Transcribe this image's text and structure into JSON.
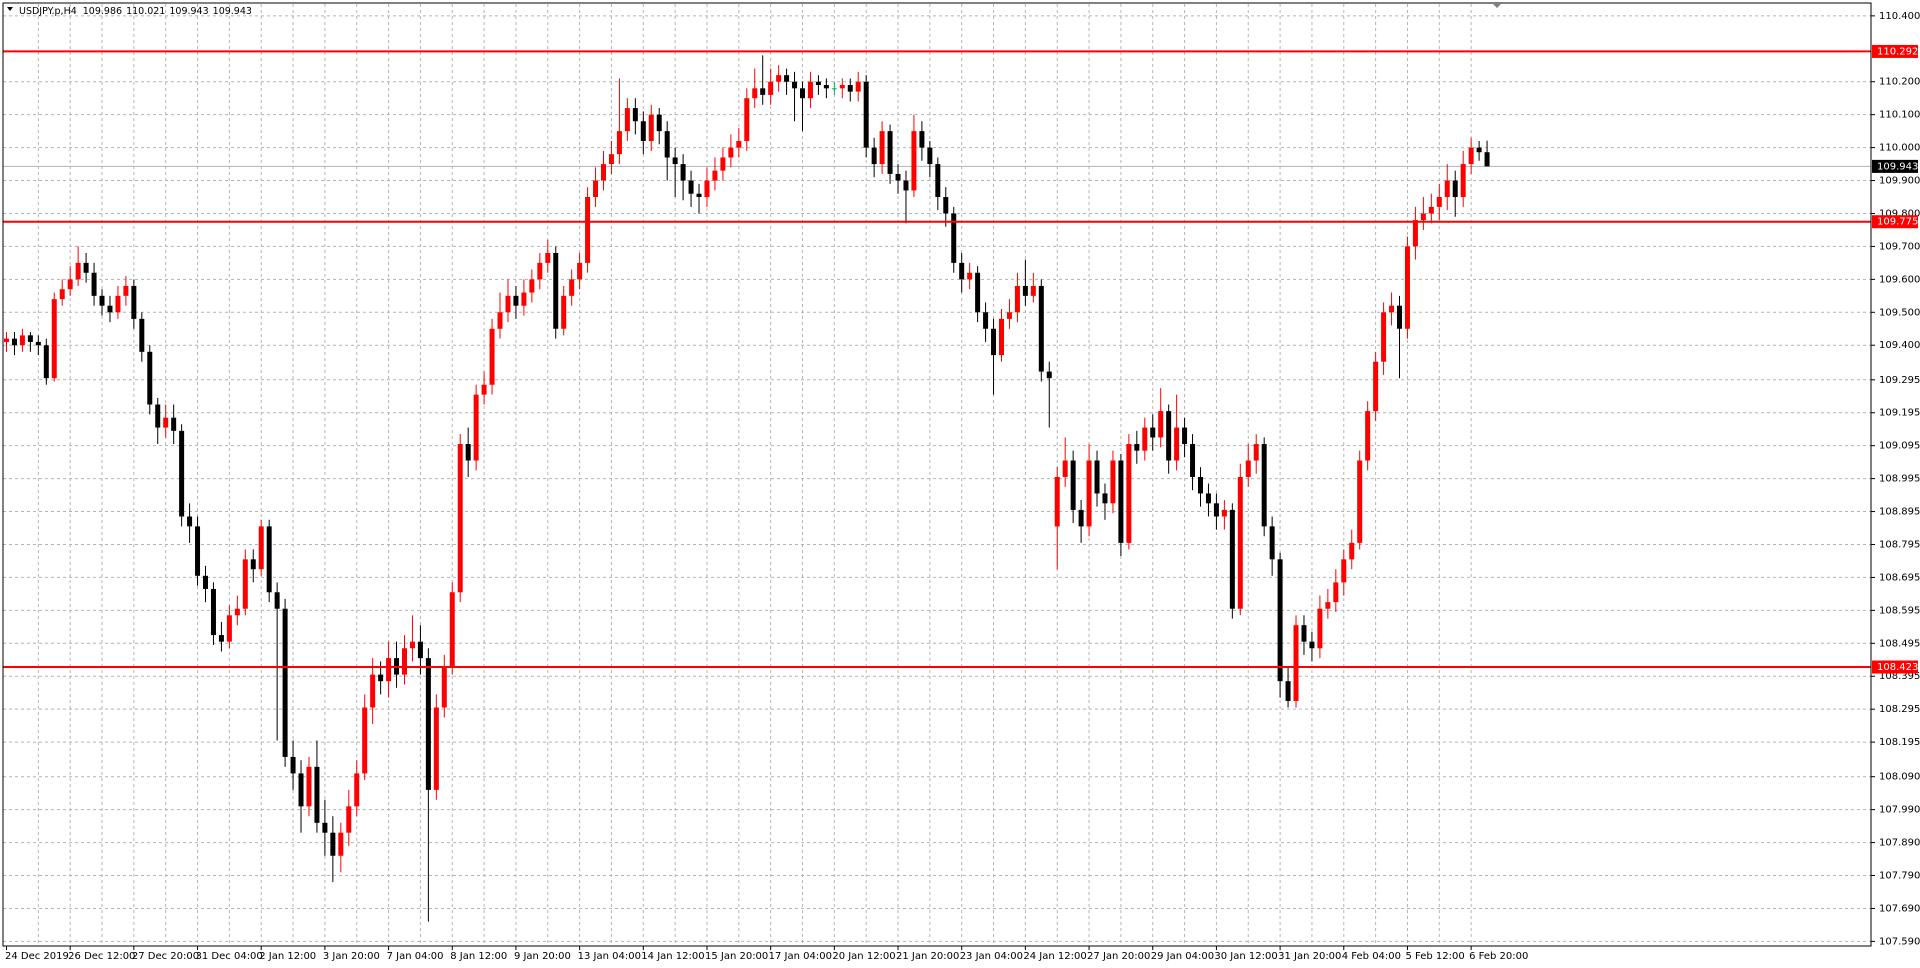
{
  "chart_data": {
    "type": "candlestick",
    "title": "USDJPY.p,H4",
    "categories": [
      "24 Dec 2019",
      null,
      null,
      null,
      null,
      null,
      null,
      null,
      "26 Dec 12:00",
      null,
      null,
      null,
      null,
      null,
      null,
      null,
      "27 Dec 20:00",
      null,
      null,
      null,
      null,
      null,
      null,
      null,
      "31 Dec 04:00",
      null,
      null,
      null,
      null,
      null,
      null,
      null,
      "2 Jan 12:00",
      null,
      null,
      null,
      null,
      null,
      null,
      null,
      "3 Jan 20:00",
      null,
      null,
      null,
      null,
      null,
      null,
      null,
      "7 Jan 04:00",
      null,
      null,
      null,
      null,
      null,
      null,
      null,
      "8 Jan 12:00",
      null,
      null,
      null,
      null,
      null,
      null,
      null,
      "9 Jan 20:00",
      null,
      null,
      null,
      null,
      null,
      null,
      null,
      "13 Jan 04:00",
      null,
      null,
      null,
      null,
      null,
      null,
      null,
      "14 Jan 12:00",
      null,
      null,
      null,
      null,
      null,
      null,
      null,
      "15 Jan 20:00",
      null,
      null,
      null,
      null,
      null,
      null,
      null,
      "17 Jan 04:00",
      null,
      null,
      null,
      null,
      null,
      null,
      null,
      "20 Jan 12:00",
      null,
      null,
      null,
      null,
      null,
      null,
      null,
      "21 Jan 20:00",
      null,
      null,
      null,
      null,
      null,
      null,
      null,
      "23 Jan 04:00",
      null,
      null,
      null,
      null,
      null,
      null,
      null,
      "24 Jan 12:00",
      null,
      null,
      null,
      null,
      null,
      null,
      null,
      "27 Jan 20:00",
      null,
      null,
      null,
      null,
      null,
      null,
      null,
      "29 Jan 04:00",
      null,
      null,
      null,
      null,
      null,
      null,
      null,
      "30 Jan 12:00",
      null,
      null,
      null,
      null,
      null,
      null,
      null,
      "31 Jan 20:00",
      null,
      null,
      null,
      null,
      null,
      null,
      null,
      "4 Feb 04:00",
      null,
      null,
      null,
      null,
      null,
      null,
      null,
      "5 Feb 12:00",
      null,
      null,
      null,
      null,
      null,
      null,
      null,
      "6 Feb 20:00",
      null,
      null
    ],
    "open": [
      109.41,
      109.42,
      109.4,
      109.43,
      109.41,
      109.4,
      109.3,
      109.54,
      109.57,
      109.6,
      109.65,
      109.62,
      109.55,
      109.52,
      109.5,
      109.55,
      109.58,
      109.48,
      109.38,
      109.22,
      109.15,
      109.18,
      109.14,
      108.88,
      108.85,
      108.7,
      108.66,
      108.52,
      108.5,
      108.58,
      108.6,
      108.75,
      108.72,
      108.85,
      108.65,
      108.6,
      108.15,
      108.1,
      108.0,
      108.12,
      107.95,
      107.92,
      107.85,
      107.92,
      108.0,
      108.1,
      108.3,
      108.4,
      108.38,
      108.45,
      108.4,
      108.48,
      108.5,
      108.45,
      108.05,
      108.3,
      108.42,
      108.65,
      109.1,
      109.05,
      109.25,
      109.28,
      109.45,
      109.5,
      109.55,
      109.52,
      109.56,
      109.6,
      109.65,
      109.68,
      109.45,
      109.55,
      109.6,
      109.65,
      109.85,
      109.9,
      109.95,
      109.98,
      110.05,
      110.12,
      110.08,
      110.02,
      110.1,
      110.05,
      109.97,
      109.95,
      109.9,
      109.86,
      109.85,
      109.9,
      109.93,
      109.97,
      110.0,
      110.02,
      110.15,
      110.18,
      110.16,
      110.2,
      110.22,
      110.2,
      110.18,
      110.15,
      110.2,
      110.19,
      110.18,
      110.18,
      110.19,
      110.17,
      110.2,
      110.0,
      109.95,
      110.05,
      109.92,
      109.9,
      109.87,
      110.05,
      110.0,
      109.95,
      109.85,
      109.8,
      109.65,
      109.6,
      109.62,
      109.5,
      109.45,
      109.37,
      109.48,
      109.5,
      109.58,
      109.55,
      109.58,
      109.32,
      108.85,
      109.0,
      109.05,
      108.9,
      108.85,
      109.05,
      108.95,
      108.92,
      109.05,
      108.8,
      109.1,
      109.08,
      109.15,
      109.12,
      109.2,
      109.05,
      109.15,
      109.1,
      109.0,
      108.95,
      108.92,
      108.88,
      108.9,
      108.6,
      109.0,
      109.05,
      109.1,
      108.85,
      108.75,
      108.38,
      108.32,
      108.55,
      108.5,
      108.48,
      108.6,
      108.62,
      108.68,
      108.75,
      108.8,
      109.05,
      109.2,
      109.35,
      109.5,
      109.52,
      109.45,
      109.7,
      109.78,
      109.8,
      109.82,
      109.85,
      109.9,
      109.85,
      109.95,
      110.0,
      109.986
    ],
    "high": [
      109.44,
      109.44,
      109.45,
      109.44,
      109.43,
      109.42,
      109.56,
      109.6,
      109.64,
      109.7,
      109.68,
      109.65,
      109.57,
      109.55,
      109.58,
      109.61,
      109.6,
      109.5,
      109.4,
      109.24,
      109.22,
      109.22,
      109.16,
      108.92,
      108.88,
      108.73,
      108.68,
      108.56,
      108.61,
      108.64,
      108.78,
      108.78,
      108.87,
      108.87,
      108.68,
      108.63,
      108.2,
      108.14,
      108.15,
      108.2,
      108.02,
      107.97,
      107.95,
      108.05,
      108.14,
      108.34,
      108.45,
      108.44,
      108.5,
      108.5,
      108.52,
      108.58,
      108.55,
      108.48,
      108.34,
      108.46,
      108.68,
      109.13,
      109.15,
      109.28,
      109.32,
      109.48,
      109.56,
      109.6,
      109.58,
      109.6,
      109.63,
      109.68,
      109.72,
      109.7,
      109.58,
      109.63,
      109.68,
      109.88,
      109.94,
      109.99,
      110.02,
      110.21,
      110.15,
      110.15,
      110.11,
      110.13,
      110.12,
      110.08,
      110.0,
      109.98,
      109.93,
      109.89,
      109.94,
      109.97,
      110.0,
      110.04,
      110.06,
      110.18,
      110.24,
      110.28,
      110.24,
      110.25,
      110.24,
      110.23,
      110.2,
      110.23,
      110.22,
      110.21,
      110.2,
      110.21,
      110.21,
      110.23,
      110.22,
      110.03,
      110.08,
      110.07,
      109.95,
      109.93,
      110.1,
      110.08,
      110.02,
      109.97,
      109.88,
      109.82,
      109.68,
      109.65,
      109.64,
      109.53,
      109.48,
      109.51,
      109.54,
      109.62,
      109.66,
      109.62,
      109.6,
      109.35,
      109.03,
      109.12,
      109.08,
      108.93,
      109.1,
      109.08,
      108.98,
      109.08,
      109.07,
      109.13,
      109.14,
      109.18,
      109.19,
      109.27,
      109.22,
      109.25,
      109.18,
      109.13,
      109.03,
      108.98,
      108.95,
      108.93,
      108.92,
      109.04,
      109.1,
      109.13,
      109.12,
      108.88,
      108.77,
      108.42,
      108.58,
      108.58,
      108.53,
      108.64,
      108.66,
      108.72,
      108.78,
      108.84,
      109.08,
      109.23,
      109.38,
      109.53,
      109.56,
      109.55,
      109.73,
      109.82,
      109.85,
      109.86,
      109.89,
      109.95,
      109.93,
      109.99,
      110.03,
      110.02,
      110.021
    ],
    "low": [
      109.38,
      109.37,
      109.38,
      109.38,
      109.37,
      109.28,
      109.29,
      109.52,
      109.55,
      109.58,
      109.59,
      109.52,
      109.49,
      109.47,
      109.48,
      109.52,
      109.45,
      109.35,
      109.19,
      109.1,
      109.12,
      109.1,
      108.85,
      108.8,
      108.67,
      108.62,
      108.49,
      108.47,
      108.48,
      108.55,
      108.58,
      108.68,
      108.7,
      108.62,
      108.2,
      108.12,
      108.05,
      107.92,
      107.97,
      107.92,
      107.85,
      107.77,
      107.8,
      107.88,
      107.97,
      108.08,
      108.25,
      108.34,
      108.33,
      108.36,
      108.37,
      108.44,
      108.4,
      107.65,
      108.02,
      108.27,
      108.4,
      108.62,
      109.0,
      109.02,
      109.22,
      109.25,
      109.42,
      109.47,
      109.48,
      109.49,
      109.53,
      109.57,
      109.62,
      109.42,
      109.43,
      109.52,
      109.57,
      109.62,
      109.82,
      109.87,
      109.92,
      109.95,
      110.02,
      110.04,
      109.98,
      109.99,
      110.01,
      109.9,
      109.85,
      109.84,
      109.82,
      109.8,
      109.82,
      109.87,
      109.9,
      109.94,
      109.97,
      109.99,
      110.12,
      110.13,
      110.13,
      110.17,
      110.16,
      110.08,
      110.05,
      110.12,
      110.16,
      110.15,
      110.16,
      110.15,
      110.14,
      110.14,
      109.97,
      109.91,
      109.92,
      109.89,
      109.86,
      109.77,
      109.85,
      109.96,
      109.91,
      109.81,
      109.76,
      109.62,
      109.56,
      109.57,
      109.47,
      109.41,
      109.25,
      109.35,
      109.45,
      109.47,
      109.52,
      109.53,
      109.29,
      109.15,
      108.72,
      108.97,
      108.86,
      108.8,
      108.82,
      108.91,
      108.87,
      108.89,
      108.76,
      108.78,
      109.04,
      109.05,
      109.08,
      109.09,
      109.01,
      109.02,
      109.06,
      108.96,
      108.91,
      108.88,
      108.84,
      108.84,
      108.57,
      108.58,
      108.97,
      109.01,
      108.82,
      108.7,
      108.33,
      108.3,
      108.3,
      108.46,
      108.44,
      108.45,
      108.57,
      108.59,
      108.64,
      108.72,
      108.78,
      109.02,
      109.17,
      109.31,
      109.46,
      109.3,
      109.42,
      109.66,
      109.75,
      109.77,
      109.78,
      109.81,
      109.79,
      109.82,
      109.92,
      109.96,
      109.943
    ],
    "close": [
      109.42,
      109.4,
      109.43,
      109.41,
      109.4,
      109.3,
      109.54,
      109.57,
      109.6,
      109.65,
      109.62,
      109.55,
      109.52,
      109.5,
      109.55,
      109.58,
      109.48,
      109.38,
      109.22,
      109.15,
      109.18,
      109.14,
      108.88,
      108.85,
      108.7,
      108.66,
      108.52,
      108.5,
      108.58,
      108.6,
      108.75,
      108.72,
      108.85,
      108.65,
      108.6,
      108.15,
      108.1,
      108.0,
      108.12,
      107.95,
      107.92,
      107.85,
      107.92,
      108.0,
      108.1,
      108.3,
      108.4,
      108.38,
      108.45,
      108.4,
      108.48,
      108.5,
      108.45,
      108.05,
      108.3,
      108.42,
      108.65,
      109.1,
      109.05,
      109.25,
      109.28,
      109.45,
      109.5,
      109.55,
      109.52,
      109.56,
      109.6,
      109.65,
      109.68,
      109.45,
      109.55,
      109.6,
      109.65,
      109.85,
      109.9,
      109.95,
      109.98,
      110.05,
      110.12,
      110.08,
      110.02,
      110.1,
      110.05,
      109.97,
      109.95,
      109.9,
      109.86,
      109.85,
      109.9,
      109.93,
      109.97,
      110.0,
      110.02,
      110.15,
      110.18,
      110.16,
      110.2,
      110.22,
      110.2,
      110.18,
      110.15,
      110.2,
      110.19,
      110.18,
      110.18,
      110.19,
      110.17,
      110.2,
      110.0,
      109.95,
      110.05,
      109.92,
      109.9,
      109.87,
      110.05,
      110.0,
      109.95,
      109.85,
      109.8,
      109.65,
      109.6,
      109.62,
      109.5,
      109.45,
      109.37,
      109.48,
      109.5,
      109.58,
      109.55,
      109.58,
      109.32,
      109.3,
      109.0,
      109.05,
      108.9,
      108.85,
      109.05,
      108.95,
      108.92,
      109.05,
      108.8,
      109.1,
      109.08,
      109.15,
      109.12,
      109.2,
      109.05,
      109.15,
      109.1,
      109.0,
      108.95,
      108.92,
      108.88,
      108.9,
      108.6,
      109.0,
      109.05,
      109.1,
      108.85,
      108.75,
      108.38,
      108.32,
      108.55,
      108.5,
      108.48,
      108.6,
      108.62,
      108.68,
      108.75,
      108.8,
      109.05,
      109.2,
      109.35,
      109.5,
      109.52,
      109.45,
      109.7,
      109.78,
      109.8,
      109.82,
      109.85,
      109.9,
      109.85,
      109.95,
      110.0,
      109.986,
      109.943
    ],
    "up_color": "#ff0000",
    "down_color": "#000000",
    "flat_color": "#00b050",
    "ylim": [
      107.576,
      110.436
    ],
    "yticks": [
      {
        "value": 110.4,
        "label": "110.400"
      },
      {
        "value": 110.2,
        "label": "110.200"
      },
      {
        "value": 110.1,
        "label": "110.100"
      },
      {
        "value": 110,
        "label": "110.000"
      },
      {
        "value": 109.9,
        "label": "109.900"
      },
      {
        "value": 109.8,
        "label": "109.800"
      },
      {
        "value": 109.7,
        "label": "109.700"
      },
      {
        "value": 109.6,
        "label": "109.600"
      },
      {
        "value": 109.5,
        "label": "109.500"
      },
      {
        "value": 109.4,
        "label": "109.400"
      },
      109.295,
      109.195,
      109.095,
      108.995,
      108.895,
      108.795,
      108.695,
      108.595,
      108.495,
      108.395,
      108.295,
      108.195,
      {
        "value": 108.09,
        "label": "108.090"
      },
      {
        "value": 107.99,
        "label": "107.990"
      },
      {
        "value": 107.89,
        "label": "107.890"
      },
      {
        "value": 107.79,
        "label": "107.790"
      },
      {
        "value": 107.69,
        "label": "107.690"
      },
      {
        "value": 107.59,
        "label": "107.590"
      }
    ],
    "grid": true,
    "levels": [
      110.292,
      109.775,
      108.423
    ],
    "level_color": "#ff0000",
    "current_price": 109.943,
    "current_color": "#a8b4c0"
  }
}
